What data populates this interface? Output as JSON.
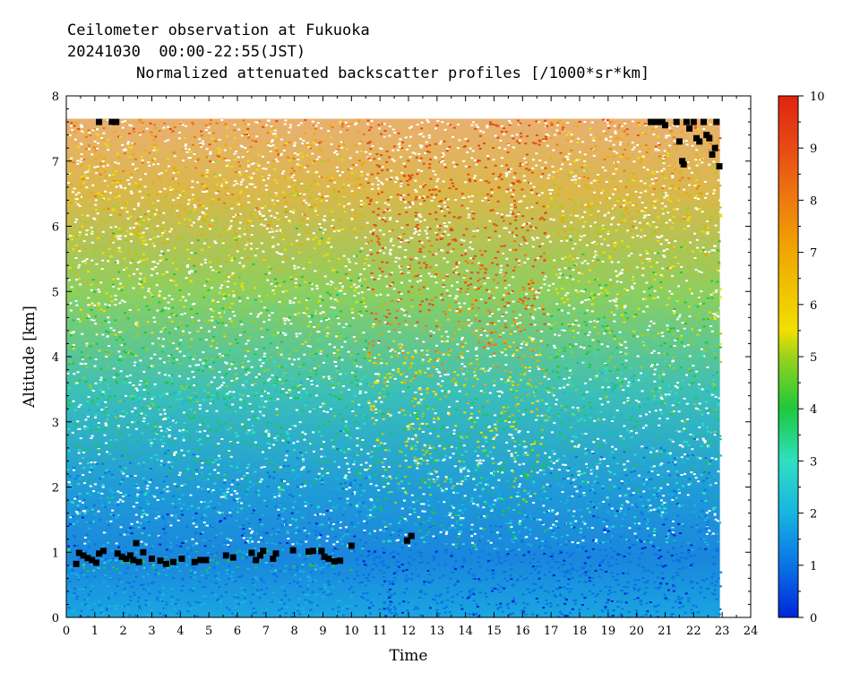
{
  "header": {
    "line1": "Ceilometer observation at Fukuoka",
    "line2": "20241030  00:00-22:55(JST)",
    "line3": "Normalized attenuated backscatter profiles [/1000*sr*km]"
  },
  "chart_data": {
    "type": "heatmap",
    "title": "Normalized attenuated backscatter profiles [/1000*sr*km]",
    "xlabel": "Time",
    "ylabel": "Altitude [km]",
    "xlim": [
      0,
      24
    ],
    "ylim": [
      0,
      8
    ],
    "x_ticks": [
      "0",
      "1",
      "2",
      "3",
      "4",
      "5",
      "6",
      "7",
      "8",
      "9",
      "10",
      "11",
      "12",
      "13",
      "14",
      "15",
      "16",
      "17",
      "18",
      "19",
      "20",
      "21",
      "22",
      "23",
      "24"
    ],
    "y_ticks": [
      "0",
      "1",
      "2",
      "3",
      "4",
      "5",
      "6",
      "7",
      "8"
    ],
    "data_extent": {
      "x": [
        0,
        22.92
      ],
      "y": [
        0,
        7.65
      ]
    },
    "colorbar": {
      "min": 0,
      "max": 10,
      "ticks": [
        "0",
        "1",
        "2",
        "3",
        "4",
        "5",
        "6",
        "7",
        "8",
        "9",
        "10"
      ],
      "colors": [
        "#0026d9",
        "#0a73e6",
        "#18b4e0",
        "#2ee0c0",
        "#1ec83c",
        "#9ad21c",
        "#f0e000",
        "#f0a800",
        "#ee7a10",
        "#e84a14",
        "#e02410"
      ]
    },
    "cloud_base_points": [
      {
        "x": 0.35,
        "y": 0.82
      },
      {
        "x": 0.45,
        "y": 0.99
      },
      {
        "x": 0.6,
        "y": 0.95
      },
      {
        "x": 0.75,
        "y": 0.91
      },
      {
        "x": 0.9,
        "y": 0.88
      },
      {
        "x": 1.05,
        "y": 0.84
      },
      {
        "x": 1.15,
        "y": 0.98
      },
      {
        "x": 1.3,
        "y": 1.02
      },
      {
        "x": 1.8,
        "y": 0.98
      },
      {
        "x": 1.95,
        "y": 0.93
      },
      {
        "x": 2.1,
        "y": 0.9
      },
      {
        "x": 2.25,
        "y": 0.95
      },
      {
        "x": 2.35,
        "y": 0.88
      },
      {
        "x": 2.45,
        "y": 1.14
      },
      {
        "x": 2.55,
        "y": 0.85
      },
      {
        "x": 2.7,
        "y": 1.0
      },
      {
        "x": 3.0,
        "y": 0.9
      },
      {
        "x": 3.3,
        "y": 0.87
      },
      {
        "x": 3.5,
        "y": 0.82
      },
      {
        "x": 3.75,
        "y": 0.85
      },
      {
        "x": 4.05,
        "y": 0.9
      },
      {
        "x": 4.5,
        "y": 0.85
      },
      {
        "x": 4.7,
        "y": 0.88
      },
      {
        "x": 4.9,
        "y": 0.88
      },
      {
        "x": 5.6,
        "y": 0.95
      },
      {
        "x": 5.85,
        "y": 0.92
      },
      {
        "x": 6.5,
        "y": 0.99
      },
      {
        "x": 6.65,
        "y": 0.88
      },
      {
        "x": 6.8,
        "y": 0.95
      },
      {
        "x": 6.9,
        "y": 1.02
      },
      {
        "x": 7.25,
        "y": 0.9
      },
      {
        "x": 7.35,
        "y": 0.98
      },
      {
        "x": 7.95,
        "y": 1.03
      },
      {
        "x": 8.5,
        "y": 1.01
      },
      {
        "x": 8.65,
        "y": 1.02
      },
      {
        "x": 8.95,
        "y": 1.02
      },
      {
        "x": 9.05,
        "y": 0.93
      },
      {
        "x": 9.2,
        "y": 0.9
      },
      {
        "x": 9.4,
        "y": 0.86
      },
      {
        "x": 9.6,
        "y": 0.87
      },
      {
        "x": 10.0,
        "y": 1.1
      },
      {
        "x": 11.95,
        "y": 1.18
      },
      {
        "x": 12.1,
        "y": 1.25
      },
      {
        "x": 1.15,
        "y": 7.6
      },
      {
        "x": 1.6,
        "y": 7.6
      },
      {
        "x": 1.75,
        "y": 7.6
      },
      {
        "x": 20.5,
        "y": 7.6
      },
      {
        "x": 20.7,
        "y": 7.6
      },
      {
        "x": 20.9,
        "y": 7.6
      },
      {
        "x": 21.0,
        "y": 7.55
      },
      {
        "x": 21.4,
        "y": 7.6
      },
      {
        "x": 21.5,
        "y": 7.3
      },
      {
        "x": 21.6,
        "y": 7.0
      },
      {
        "x": 21.65,
        "y": 6.95
      },
      {
        "x": 21.75,
        "y": 7.6
      },
      {
        "x": 21.85,
        "y": 7.5
      },
      {
        "x": 22.0,
        "y": 7.6
      },
      {
        "x": 22.1,
        "y": 7.35
      },
      {
        "x": 22.2,
        "y": 7.3
      },
      {
        "x": 22.35,
        "y": 7.6
      },
      {
        "x": 22.45,
        "y": 7.4
      },
      {
        "x": 22.55,
        "y": 7.35
      },
      {
        "x": 22.65,
        "y": 7.1
      },
      {
        "x": 22.75,
        "y": 7.2
      },
      {
        "x": 22.8,
        "y": 7.6
      },
      {
        "x": 22.9,
        "y": 6.92
      }
    ]
  }
}
